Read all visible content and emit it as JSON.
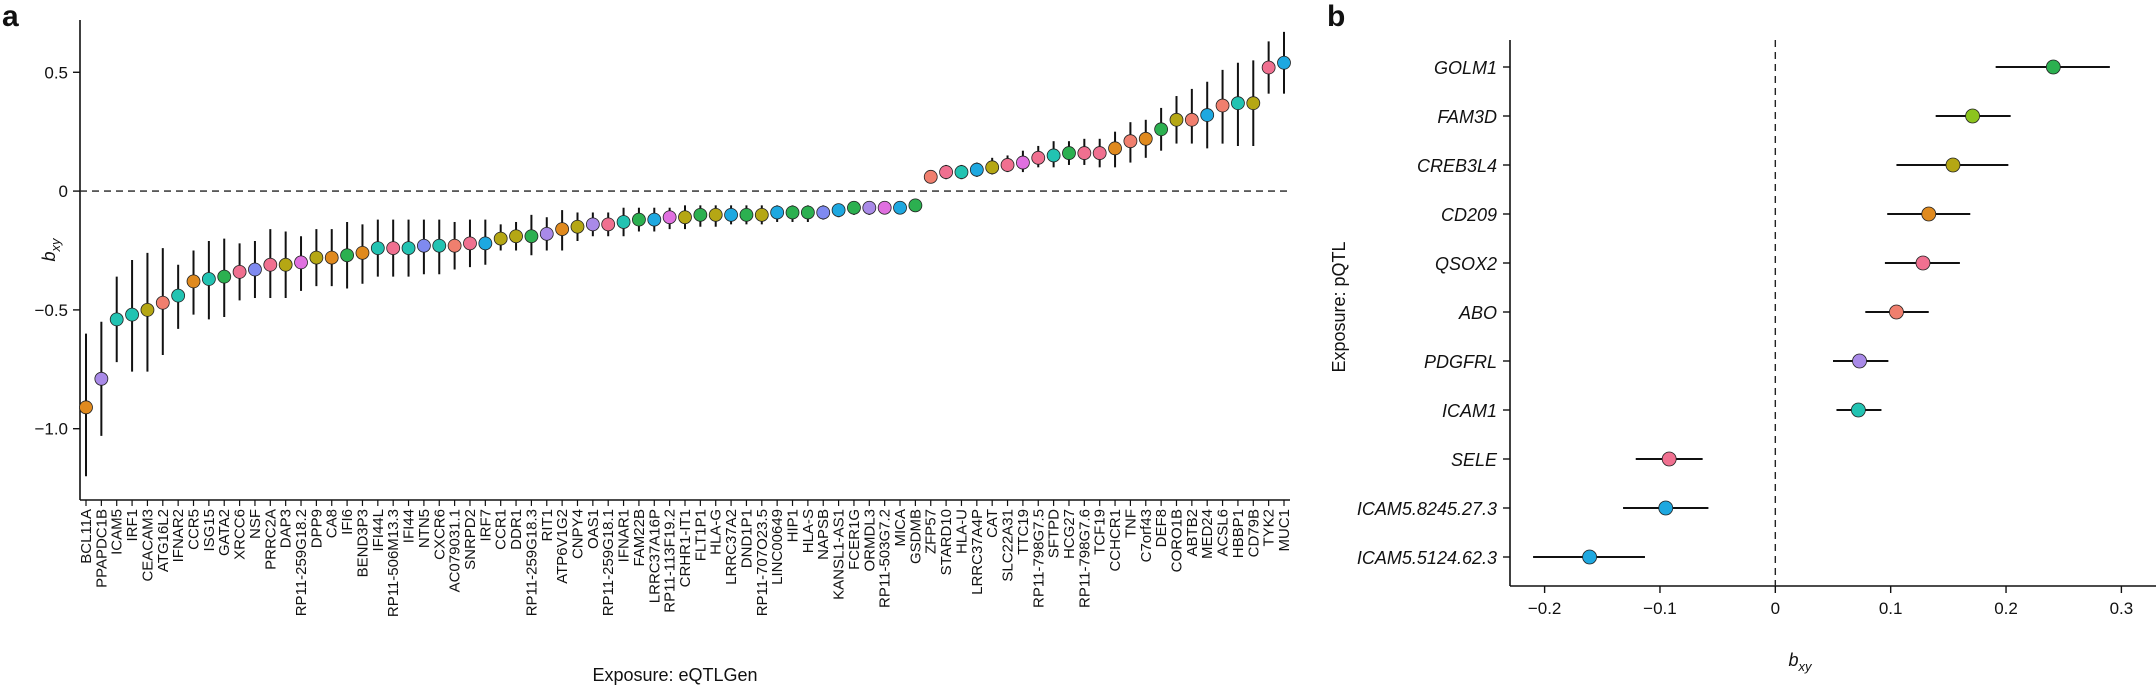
{
  "chart_data": [
    {
      "panel": "a",
      "type": "scatter",
      "ylabel_main": "b",
      "ylabel_sub": "xy",
      "xlabel": "Exposure: eQTLGen",
      "ylim": [
        -1.3,
        0.72
      ],
      "yticks": [
        0.5,
        0,
        -0.5,
        -1.0
      ],
      "ytick_labels": [
        "0.5",
        "0",
        "−0.5",
        "−1.0"
      ],
      "reference_line": 0,
      "grid": false,
      "points": [
        {
          "label": "BCL11A",
          "value": -0.91,
          "lo": -1.2,
          "hi": -0.6,
          "color": "#E08A1E"
        },
        {
          "label": "PPAPDC1B",
          "value": -0.79,
          "lo": -1.03,
          "hi": -0.55,
          "color": "#A98AE8"
        },
        {
          "label": "ICAM5",
          "value": -0.54,
          "lo": -0.72,
          "hi": -0.36,
          "color": "#22C3B2"
        },
        {
          "label": "IRF1",
          "value": -0.52,
          "lo": -0.76,
          "hi": -0.29,
          "color": "#22C3B2"
        },
        {
          "label": "CEACAM3",
          "value": -0.5,
          "lo": -0.76,
          "hi": -0.26,
          "color": "#B5A714"
        },
        {
          "label": "ATG16L2",
          "value": -0.47,
          "lo": -0.69,
          "hi": -0.24,
          "color": "#F07F6E"
        },
        {
          "label": "IFNAR2",
          "value": -0.44,
          "lo": -0.58,
          "hi": -0.31,
          "color": "#22C3B2"
        },
        {
          "label": "CCR5",
          "value": -0.38,
          "lo": -0.52,
          "hi": -0.25,
          "color": "#E08A1E"
        },
        {
          "label": "ISG15",
          "value": -0.37,
          "lo": -0.54,
          "hi": -0.21,
          "color": "#22C3B2"
        },
        {
          "label": "GATA2",
          "value": -0.36,
          "lo": -0.53,
          "hi": -0.2,
          "color": "#2CB050"
        },
        {
          "label": "XRCC6",
          "value": -0.34,
          "lo": -0.46,
          "hi": -0.22,
          "color": "#F07090"
        },
        {
          "label": "NSF",
          "value": -0.33,
          "lo": -0.45,
          "hi": -0.21,
          "color": "#7F8AF0"
        },
        {
          "label": "PRRC2A",
          "value": -0.31,
          "lo": -0.45,
          "hi": -0.16,
          "color": "#F07090"
        },
        {
          "label": "DAP3",
          "value": -0.31,
          "lo": -0.45,
          "hi": -0.17,
          "color": "#B5A714"
        },
        {
          "label": "RP11-259G18.2",
          "value": -0.3,
          "lo": -0.42,
          "hi": -0.19,
          "color": "#E070E0"
        },
        {
          "label": "DPP9",
          "value": -0.28,
          "lo": -0.4,
          "hi": -0.16,
          "color": "#B5A714"
        },
        {
          "label": "CA8",
          "value": -0.28,
          "lo": -0.4,
          "hi": -0.16,
          "color": "#E08A1E"
        },
        {
          "label": "IFI6",
          "value": -0.27,
          "lo": -0.41,
          "hi": -0.13,
          "color": "#2CB050"
        },
        {
          "label": "BEND3P3",
          "value": -0.26,
          "lo": -0.39,
          "hi": -0.14,
          "color": "#E08A1E"
        },
        {
          "label": "IFI44L",
          "value": -0.24,
          "lo": -0.36,
          "hi": -0.12,
          "color": "#22C3B2"
        },
        {
          "label": "RP11-506M13.3",
          "value": -0.24,
          "lo": -0.36,
          "hi": -0.12,
          "color": "#F07090"
        },
        {
          "label": "IFI44",
          "value": -0.24,
          "lo": -0.36,
          "hi": -0.12,
          "color": "#22C3B2"
        },
        {
          "label": "NTN5",
          "value": -0.23,
          "lo": -0.35,
          "hi": -0.12,
          "color": "#7F8AF0"
        },
        {
          "label": "CXCR6",
          "value": -0.23,
          "lo": -0.35,
          "hi": -0.12,
          "color": "#22C3B2"
        },
        {
          "label": "AC079031.1",
          "value": -0.23,
          "lo": -0.33,
          "hi": -0.13,
          "color": "#F07F6E"
        },
        {
          "label": "SNRPD2",
          "value": -0.22,
          "lo": -0.32,
          "hi": -0.12,
          "color": "#F07090"
        },
        {
          "label": "IRF7",
          "value": -0.22,
          "lo": -0.31,
          "hi": -0.12,
          "color": "#1EA8E0"
        },
        {
          "label": "CCR1",
          "value": -0.2,
          "lo": -0.25,
          "hi": -0.14,
          "color": "#B5A714"
        },
        {
          "label": "DDR1",
          "value": -0.19,
          "lo": -0.25,
          "hi": -0.13,
          "color": "#B5A714"
        },
        {
          "label": "RP11-259G18.3",
          "value": -0.19,
          "lo": -0.27,
          "hi": -0.1,
          "color": "#2CB050"
        },
        {
          "label": "RIT1",
          "value": -0.18,
          "lo": -0.25,
          "hi": -0.11,
          "color": "#A98AE8"
        },
        {
          "label": "ATP6V1G2",
          "value": -0.16,
          "lo": -0.25,
          "hi": -0.08,
          "color": "#E08A1E"
        },
        {
          "label": "CNPY4",
          "value": -0.15,
          "lo": -0.21,
          "hi": -0.09,
          "color": "#B5A714"
        },
        {
          "label": "OAS1",
          "value": -0.14,
          "lo": -0.19,
          "hi": -0.09,
          "color": "#A98AE8"
        },
        {
          "label": "RP11-259G18.1",
          "value": -0.14,
          "lo": -0.19,
          "hi": -0.09,
          "color": "#F07090"
        },
        {
          "label": "IFNAR1",
          "value": -0.13,
          "lo": -0.19,
          "hi": -0.07,
          "color": "#22C3B2"
        },
        {
          "label": "FAM22B",
          "value": -0.12,
          "lo": -0.17,
          "hi": -0.07,
          "color": "#2CB050"
        },
        {
          "label": "LRRC37A16P",
          "value": -0.12,
          "lo": -0.17,
          "hi": -0.07,
          "color": "#1EA8E0"
        },
        {
          "label": "RP11-113F19.2",
          "value": -0.11,
          "lo": -0.16,
          "hi": -0.07,
          "color": "#E070E0"
        },
        {
          "label": "CRHR1-IT1",
          "value": -0.11,
          "lo": -0.16,
          "hi": -0.06,
          "color": "#B5A714"
        },
        {
          "label": "FLT1P1",
          "value": -0.1,
          "lo": -0.15,
          "hi": -0.06,
          "color": "#2CB050"
        },
        {
          "label": "HLA-G",
          "value": -0.1,
          "lo": -0.15,
          "hi": -0.06,
          "color": "#B5A714"
        },
        {
          "label": "LRRC37A2",
          "value": -0.1,
          "lo": -0.14,
          "hi": -0.06,
          "color": "#1EA8E0"
        },
        {
          "label": "DND1P1",
          "value": -0.1,
          "lo": -0.14,
          "hi": -0.06,
          "color": "#2CB050"
        },
        {
          "label": "RP11-707O23.5",
          "value": -0.1,
          "lo": -0.14,
          "hi": -0.06,
          "color": "#B5A714"
        },
        {
          "label": "LINC00649",
          "value": -0.09,
          "lo": -0.13,
          "hi": -0.06,
          "color": "#1EA8E0"
        },
        {
          "label": "HIP1",
          "value": -0.09,
          "lo": -0.13,
          "hi": -0.06,
          "color": "#2CB050"
        },
        {
          "label": "HLA-S",
          "value": -0.09,
          "lo": -0.13,
          "hi": -0.06,
          "color": "#2CB050"
        },
        {
          "label": "NAPSB",
          "value": -0.09,
          "lo": -0.12,
          "hi": -0.06,
          "color": "#7F8AF0"
        },
        {
          "label": "KANSL1-AS1",
          "value": -0.08,
          "lo": -0.11,
          "hi": -0.06,
          "color": "#1EA8E0"
        },
        {
          "label": "FCER1G",
          "value": -0.07,
          "lo": -0.1,
          "hi": -0.05,
          "color": "#2CB050"
        },
        {
          "label": "ORMDL3",
          "value": -0.07,
          "lo": -0.1,
          "hi": -0.05,
          "color": "#A98AE8"
        },
        {
          "label": "RP11-503G7.2",
          "value": -0.07,
          "lo": -0.09,
          "hi": -0.05,
          "color": "#E070E0"
        },
        {
          "label": "MICA",
          "value": -0.07,
          "lo": -0.09,
          "hi": -0.05,
          "color": "#1EA8E0"
        },
        {
          "label": "GSDMB",
          "value": -0.06,
          "lo": -0.08,
          "hi": -0.04,
          "color": "#2CB050"
        },
        {
          "label": "ZFP57",
          "value": 0.06,
          "lo": 0.04,
          "hi": 0.08,
          "color": "#F07F6E"
        },
        {
          "label": "STARD10",
          "value": 0.08,
          "lo": 0.05,
          "hi": 0.11,
          "color": "#F07090"
        },
        {
          "label": "HLA-U",
          "value": 0.08,
          "lo": 0.05,
          "hi": 0.11,
          "color": "#22C3B2"
        },
        {
          "label": "LRRC37A4P",
          "value": 0.09,
          "lo": 0.06,
          "hi": 0.12,
          "color": "#1EA8E0"
        },
        {
          "label": "CAT",
          "value": 0.1,
          "lo": 0.07,
          "hi": 0.14,
          "color": "#B5A714"
        },
        {
          "label": "SLC22A31",
          "value": 0.11,
          "lo": 0.08,
          "hi": 0.15,
          "color": "#F07090"
        },
        {
          "label": "TTC19",
          "value": 0.12,
          "lo": 0.08,
          "hi": 0.17,
          "color": "#E070E0"
        },
        {
          "label": "RP11-798G7.5",
          "value": 0.14,
          "lo": 0.1,
          "hi": 0.19,
          "color": "#F07090"
        },
        {
          "label": "SFTPD",
          "value": 0.15,
          "lo": 0.1,
          "hi": 0.21,
          "color": "#22C3B2"
        },
        {
          "label": "HCG27",
          "value": 0.16,
          "lo": 0.11,
          "hi": 0.21,
          "color": "#2CB050"
        },
        {
          "label": "RP11-798G7.6",
          "value": 0.16,
          "lo": 0.11,
          "hi": 0.22,
          "color": "#F07090"
        },
        {
          "label": "TCF19",
          "value": 0.16,
          "lo": 0.1,
          "hi": 0.22,
          "color": "#F07090"
        },
        {
          "label": "CCHCR1",
          "value": 0.18,
          "lo": 0.1,
          "hi": 0.25,
          "color": "#E08A1E"
        },
        {
          "label": "TNF",
          "value": 0.21,
          "lo": 0.12,
          "hi": 0.29,
          "color": "#F07F6E"
        },
        {
          "label": "C7orf43",
          "value": 0.22,
          "lo": 0.14,
          "hi": 0.3,
          "color": "#E08A1E"
        },
        {
          "label": "DEF8",
          "value": 0.26,
          "lo": 0.17,
          "hi": 0.35,
          "color": "#2CB050"
        },
        {
          "label": "CORO1B",
          "value": 0.3,
          "lo": 0.2,
          "hi": 0.4,
          "color": "#B5A714"
        },
        {
          "label": "ABTB2",
          "value": 0.3,
          "lo": 0.2,
          "hi": 0.43,
          "color": "#F07F6E"
        },
        {
          "label": "MED24",
          "value": 0.32,
          "lo": 0.18,
          "hi": 0.46,
          "color": "#1EA8E0"
        },
        {
          "label": "ACSL6",
          "value": 0.36,
          "lo": 0.2,
          "hi": 0.51,
          "color": "#F07F6E"
        },
        {
          "label": "HBBP1",
          "value": 0.37,
          "lo": 0.19,
          "hi": 0.54,
          "color": "#22C3B2"
        },
        {
          "label": "CD79B",
          "value": 0.37,
          "lo": 0.19,
          "hi": 0.55,
          "color": "#B5A714"
        },
        {
          "label": "TYK2",
          "value": 0.52,
          "lo": 0.41,
          "hi": 0.63,
          "color": "#F07090"
        },
        {
          "label": "MUC1",
          "value": 0.54,
          "lo": 0.41,
          "hi": 0.67,
          "color": "#1EA8E0"
        }
      ]
    },
    {
      "panel": "b",
      "type": "scatter",
      "xlabel_main": "b",
      "xlabel_sub": "xy",
      "ylabel": "Exposure: pQTL",
      "xlim": [
        -0.23,
        0.33
      ],
      "xticks": [
        -0.2,
        -0.1,
        0,
        0.1,
        0.2,
        0.3
      ],
      "xtick_labels": [
        "−0.2",
        "−0.1",
        "0",
        "0.1",
        "0.2",
        "0.3"
      ],
      "reference_line": 0,
      "grid": false,
      "points": [
        {
          "label": "GOLM1",
          "value": 0.241,
          "lo": 0.191,
          "hi": 0.29,
          "color": "#2CB050"
        },
        {
          "label": "FAM3D",
          "value": 0.171,
          "lo": 0.139,
          "hi": 0.204,
          "color": "#8CC41E"
        },
        {
          "label": "CREB3L4",
          "value": 0.154,
          "lo": 0.105,
          "hi": 0.202,
          "color": "#B5A714"
        },
        {
          "label": "CD209",
          "value": 0.133,
          "lo": 0.097,
          "hi": 0.169,
          "color": "#E08A1E"
        },
        {
          "label": "QSOX2",
          "value": 0.128,
          "lo": 0.095,
          "hi": 0.16,
          "color": "#F07090"
        },
        {
          "label": "ABO",
          "value": 0.105,
          "lo": 0.078,
          "hi": 0.133,
          "color": "#F07F6E"
        },
        {
          "label": "PDGFRL",
          "value": 0.073,
          "lo": 0.05,
          "hi": 0.098,
          "color": "#A98AE8"
        },
        {
          "label": "ICAM1",
          "value": 0.072,
          "lo": 0.053,
          "hi": 0.092,
          "color": "#22C3B2"
        },
        {
          "label": "SELE",
          "value": -0.092,
          "lo": -0.121,
          "hi": -0.063,
          "color": "#F07090"
        },
        {
          "label": "ICAM5.8245.27.3",
          "value": -0.095,
          "lo": -0.132,
          "hi": -0.058,
          "color": "#1EA8E0"
        },
        {
          "label": "ICAM5.5124.62.3",
          "value": -0.161,
          "lo": -0.21,
          "hi": -0.113,
          "color": "#1EA8E0"
        }
      ]
    }
  ]
}
